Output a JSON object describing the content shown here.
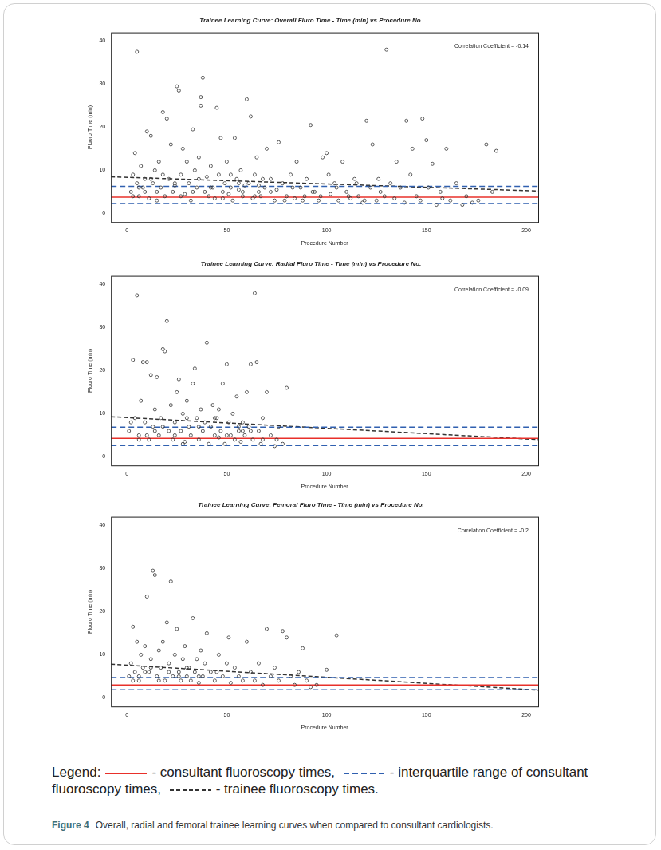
{
  "figure": {
    "legend_title": "Legend:",
    "legend_items": [
      {
        "text": "- consultant fluoroscopy times,",
        "color": "#e8302a",
        "line_style": "solid"
      },
      {
        "text": "- interquartile range of consultant fluoroscopy times,",
        "color": "#3060b0",
        "line_style": "dashed"
      },
      {
        "text": "- trainee fluoroscopy times.",
        "color": "#333333",
        "line_style": "dashed"
      }
    ],
    "caption_label": "Figure 4",
    "caption": "Overall, radial and femoral trainee learning curves when compared to consultant cardiologists."
  },
  "chart_data": [
    {
      "type": "scatter",
      "title": "Trainee Learning Curve: Overall Fluro Time - Time (min) vs Procedure No.",
      "x_label": "Procedure Number",
      "y_label": "Fluoro Time (min)",
      "annotation": "Correlation Coefficient = -0.14",
      "xlim": [
        -8,
        206
      ],
      "xticks": [
        0,
        50,
        100,
        150,
        200
      ],
      "ylim": [
        -2,
        42
      ],
      "yticks": [
        0,
        10,
        20,
        30,
        40
      ],
      "grid": false,
      "series": [
        {
          "type": "scatter",
          "marker": "open_circle",
          "color": "#333333",
          "x": [
            2,
            3,
            4,
            5,
            5,
            6,
            7,
            8,
            9,
            10,
            11,
            12,
            13,
            14,
            15,
            16,
            17,
            18,
            19,
            20,
            21,
            22,
            23,
            24,
            25,
            26,
            27,
            28,
            29,
            30,
            31,
            32,
            33,
            34,
            35,
            36,
            37,
            37,
            38,
            39,
            40,
            41,
            42,
            43,
            44,
            45,
            46,
            47,
            48,
            49,
            50,
            51,
            52,
            53,
            54,
            55,
            56,
            57,
            58,
            59,
            60,
            61,
            62,
            63,
            64,
            65,
            66,
            67,
            68,
            69,
            70,
            72,
            74,
            76,
            78,
            80,
            82,
            84,
            85,
            87,
            89,
            90,
            92,
            94,
            96,
            98,
            100,
            102,
            104,
            106,
            108,
            110,
            112,
            114,
            116,
            118,
            120,
            122,
            123,
            125,
            127,
            129,
            130,
            132,
            134,
            135,
            137,
            139,
            140,
            142,
            143,
            145,
            147,
            148,
            150,
            151,
            153,
            155,
            157,
            158,
            160,
            162,
            165,
            168,
            170,
            173,
            176,
            180,
            183,
            185,
            3,
            6,
            9,
            12,
            15,
            18,
            24,
            27,
            33,
            36,
            42,
            48,
            52,
            56,
            58,
            64,
            66,
            72,
            75,
            79,
            83,
            88,
            93,
            97,
            101,
            105,
            111,
            115,
            119,
            126
          ],
          "values": [
            5,
            9,
            14,
            37.5,
            7,
            4,
            11,
            6,
            8,
            19,
            3.5,
            18,
            7,
            10,
            5,
            12,
            6,
            23.5,
            4,
            22,
            8,
            16,
            5,
            6.5,
            29.5,
            28.5,
            9,
            15,
            4.5,
            12,
            7,
            3,
            19.5,
            10,
            6,
            13,
            27,
            25,
            31.5,
            5,
            8.5,
            4,
            11,
            6,
            3.5,
            24.5,
            9,
            17.5,
            5,
            7,
            12,
            4.5,
            6,
            3,
            17.5,
            8,
            5.5,
            10,
            4,
            6.5,
            26.5,
            7,
            22.5,
            3.5,
            9,
            13,
            5,
            4,
            8,
            6,
            15,
            5,
            3,
            16.5,
            7,
            4,
            9,
            3.5,
            12,
            6,
            4,
            8,
            20.5,
            5,
            3,
            13,
            14,
            4.5,
            7,
            3,
            12,
            5,
            3.5,
            8,
            4,
            2.5,
            21.5,
            6,
            16,
            3,
            5,
            4,
            38,
            7,
            3.5,
            12,
            6,
            2.5,
            21.5,
            9,
            15,
            4,
            3,
            22,
            17,
            6,
            11.5,
            2,
            5,
            3.5,
            15,
            3,
            7,
            2,
            4,
            2.5,
            3,
            16,
            5,
            14.5,
            4,
            6,
            5,
            8,
            3,
            9,
            7,
            4,
            5,
            8,
            6,
            3.5,
            9,
            7,
            5,
            4,
            6.5,
            8,
            5.5,
            3,
            6,
            3,
            5,
            4,
            9,
            6,
            4,
            7,
            3,
            8
          ]
        },
        {
          "type": "line",
          "line_style": "solid",
          "color": "#e8302a",
          "x": [
            -8,
            206
          ],
          "values": [
            3.8,
            3.8
          ]
        },
        {
          "type": "line",
          "line_style": "dashed",
          "color": "#3060b0",
          "x": [
            -8,
            206
          ],
          "values": [
            2.3,
            2.3
          ]
        },
        {
          "type": "line",
          "line_style": "dashed",
          "color": "#3060b0",
          "x": [
            -8,
            206
          ],
          "values": [
            6.3,
            6.3
          ]
        },
        {
          "type": "line",
          "line_style": "dashed",
          "color": "#333333",
          "x": [
            -8,
            206
          ],
          "values": [
            8.5,
            5.2
          ]
        }
      ]
    },
    {
      "type": "scatter",
      "title": "Trainee Learning Curve: Radial Fluro Time - Time (min) vs Procedure No.",
      "x_label": "Procedure Number",
      "y_label": "Fluoro Time (min)",
      "annotation": "Correlation Coefficient = -0.09",
      "xlim": [
        -8,
        206
      ],
      "xticks": [
        0,
        50,
        100,
        150,
        200
      ],
      "ylim": [
        -2,
        42
      ],
      "yticks": [
        0,
        10,
        20,
        30,
        40
      ],
      "grid": false,
      "series": [
        {
          "type": "scatter",
          "marker": "open_circle",
          "color": "#333333",
          "x": [
            1,
            3,
            4,
            5,
            6,
            7,
            8,
            9,
            10,
            11,
            12,
            13,
            14,
            15,
            16,
            17,
            18,
            19,
            20,
            21,
            22,
            23,
            24,
            25,
            26,
            27,
            28,
            29,
            30,
            31,
            32,
            33,
            34,
            35,
            36,
            37,
            38,
            39,
            40,
            41,
            42,
            43,
            44,
            45,
            46,
            47,
            48,
            49,
            50,
            51,
            52,
            53,
            54,
            55,
            56,
            57,
            58,
            59,
            60,
            61,
            62,
            63,
            64,
            65,
            66,
            67,
            68,
            70,
            72,
            74,
            75,
            76,
            78,
            80,
            2,
            6,
            14,
            24,
            30,
            36,
            44,
            50,
            56,
            62,
            68,
            10,
            18,
            28,
            46,
            58
          ],
          "values": [
            6,
            22.5,
            9,
            37.5,
            5,
            13,
            22,
            8,
            22,
            4,
            19,
            7,
            11,
            18.5,
            5,
            9,
            25,
            24.5,
            31.5,
            6,
            12,
            4,
            8,
            15,
            18,
            6,
            10,
            3.5,
            13,
            7,
            5,
            17,
            20.5,
            9,
            4,
            11,
            6,
            8,
            26.5,
            3,
            7,
            12,
            5,
            9,
            4.5,
            6,
            17,
            3,
            21.5,
            8,
            5,
            10,
            4,
            14,
            6,
            3.5,
            8,
            5,
            15,
            7,
            21.5,
            4,
            38,
            22,
            6,
            3,
            9,
            15,
            5,
            2.5,
            4,
            7,
            3,
            16,
            8,
            4,
            6,
            5,
            9,
            7,
            9,
            5,
            7,
            6,
            4,
            5,
            7,
            3,
            11,
            6
          ]
        },
        {
          "type": "line",
          "line_style": "solid",
          "color": "#e8302a",
          "x": [
            -8,
            206
          ],
          "values": [
            4.3,
            4.3
          ]
        },
        {
          "type": "line",
          "line_style": "dashed",
          "color": "#3060b0",
          "x": [
            -8,
            206
          ],
          "values": [
            2.6,
            2.6
          ]
        },
        {
          "type": "line",
          "line_style": "dashed",
          "color": "#3060b0",
          "x": [
            -8,
            206
          ],
          "values": [
            6.9,
            6.9
          ]
        },
        {
          "type": "line",
          "line_style": "dashed",
          "color": "#333333",
          "x": [
            -8,
            206
          ],
          "values": [
            9.3,
            4.0
          ]
        }
      ]
    },
    {
      "type": "scatter",
      "title": "Trainee Learning Curve: Femoral Fluro Time - Time (min) vs Procedure No.",
      "x_label": "Procedure Number",
      "y_label": "Fluoro Time (min)",
      "annotation": "Correlation Coefficient = -0.2",
      "xlim": [
        -8,
        206
      ],
      "xticks": [
        0,
        50,
        100,
        150,
        200
      ],
      "ylim": [
        -2,
        42
      ],
      "yticks": [
        0,
        10,
        20,
        30,
        40
      ],
      "grid": false,
      "series": [
        {
          "type": "scatter",
          "marker": "open_circle",
          "color": "#333333",
          "x": [
            1,
            2,
            3,
            4,
            5,
            6,
            7,
            8,
            9,
            10,
            11,
            12,
            13,
            14,
            15,
            16,
            17,
            18,
            19,
            20,
            21,
            22,
            23,
            24,
            25,
            26,
            27,
            28,
            29,
            30,
            31,
            32,
            33,
            34,
            35,
            36,
            37,
            38,
            39,
            40,
            42,
            44,
            46,
            48,
            50,
            51,
            52,
            54,
            56,
            58,
            60,
            62,
            64,
            66,
            68,
            70,
            72,
            74,
            76,
            78,
            80,
            82,
            84,
            86,
            88,
            90,
            92,
            95,
            100,
            105,
            3,
            6,
            9,
            12,
            16,
            21,
            26,
            30,
            36,
            45
          ],
          "values": [
            5,
            8,
            16.5,
            6,
            13,
            4,
            10,
            7,
            12,
            23.5,
            6,
            9,
            29.5,
            28.5,
            5,
            11,
            7,
            13,
            4,
            17.5,
            8,
            27,
            5,
            10,
            16,
            6,
            4,
            9,
            12,
            5,
            7,
            4,
            18.5,
            6,
            9,
            3.5,
            11,
            5,
            8,
            15,
            6,
            4,
            10,
            5,
            8,
            14,
            3.5,
            7,
            5,
            4,
            13,
            6,
            4,
            8,
            3,
            16,
            5,
            7,
            4,
            15.5,
            14,
            5,
            3,
            6,
            11.5,
            4,
            2.5,
            3,
            6.5,
            14.5,
            4,
            5,
            6,
            7,
            4,
            6,
            5,
            7,
            5,
            6
          ]
        },
        {
          "type": "line",
          "line_style": "solid",
          "color": "#e8302a",
          "x": [
            -8,
            206
          ],
          "values": [
            3.0,
            3.0
          ]
        },
        {
          "type": "line",
          "line_style": "dashed",
          "color": "#3060b0",
          "x": [
            -8,
            206
          ],
          "values": [
            1.9,
            1.9
          ]
        },
        {
          "type": "line",
          "line_style": "dashed",
          "color": "#3060b0",
          "x": [
            -8,
            206
          ],
          "values": [
            4.7,
            4.7
          ]
        },
        {
          "type": "line",
          "line_style": "dashed",
          "color": "#333333",
          "x": [
            -8,
            206
          ],
          "values": [
            7.8,
            1.8
          ]
        }
      ]
    }
  ]
}
